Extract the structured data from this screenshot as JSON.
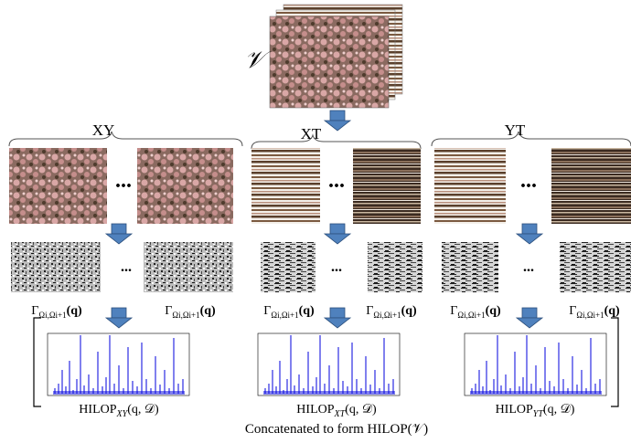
{
  "volume_label": "𝒱",
  "ellipsis": "...",
  "groups": [
    {
      "plane": "XY",
      "features": [
        {
          "symbol": "Γ",
          "subscript": "Ωi,Ωi+1",
          "argument": "(q)"
        },
        {
          "symbol": "Γ",
          "subscript": "Ωi,Ωi+1",
          "argument": "(q)"
        }
      ],
      "histogram": {
        "name": "HILOP",
        "subscript": "XY",
        "argument": "(q, 𝒟)"
      }
    },
    {
      "plane": "XT",
      "features": [
        {
          "symbol": "Γ",
          "subscript": "Ωi,Ωi+1",
          "argument": "(q)"
        },
        {
          "symbol": "Γ",
          "subscript": "Ωi,Ωi+1",
          "argument": "(q)"
        }
      ],
      "histogram": {
        "name": "HILOP",
        "subscript": "XT",
        "argument": "(q, 𝒟)"
      }
    },
    {
      "plane": "YT",
      "features": [
        {
          "symbol": "Γ",
          "subscript": "Ωi,Ωi+1",
          "argument": "(q)"
        },
        {
          "symbol": "Γ",
          "subscript": "Ωi,Ωi+1",
          "argument": "(q)"
        }
      ],
      "histogram": {
        "name": "HILOP",
        "subscript": "YT",
        "argument": "(q, 𝒟)"
      }
    }
  ],
  "caption": "Concatenated to form HILOP(𝒱)"
}
